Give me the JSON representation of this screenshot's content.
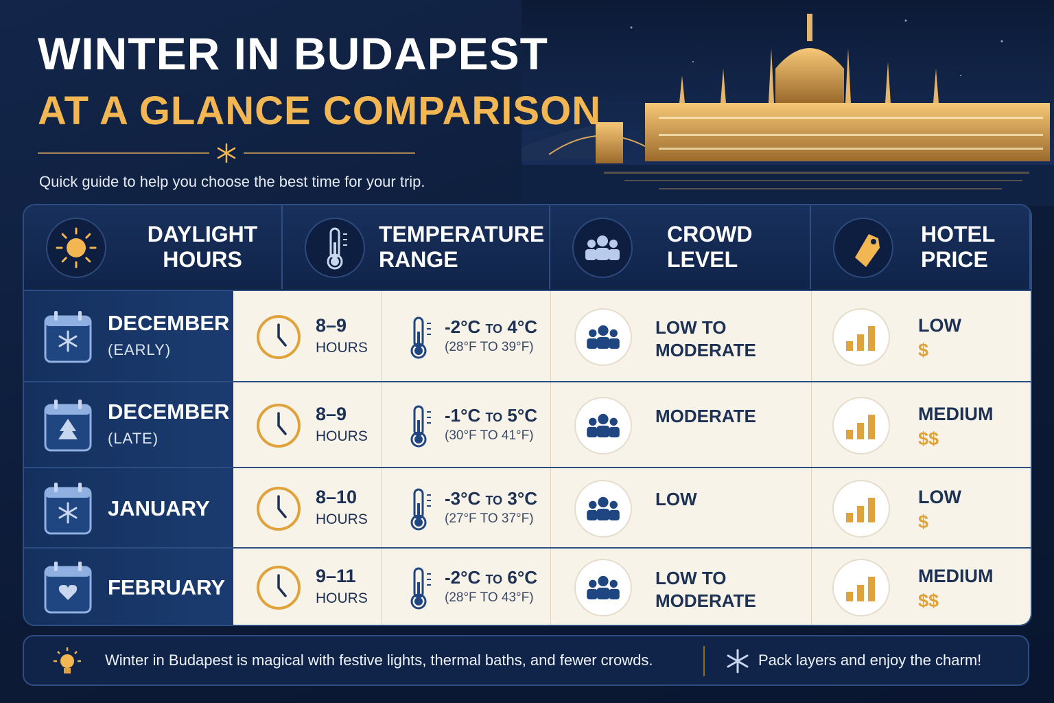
{
  "header": {
    "title_line1": "WINTER IN BUDAPEST",
    "title_line2": "AT A GLANCE COMPARISON",
    "subtitle": "Quick guide to help you choose the best time for your trip."
  },
  "table": {
    "headers": [
      "DAYLIGHT HOURS",
      "TEMPERATURE RANGE",
      "CROWD LEVEL",
      "HOTEL PRICE"
    ],
    "rows": [
      {
        "month": "DECEMBER",
        "note": "(EARLY)",
        "hours": "8–9",
        "hours_unit": "HOURS",
        "temp_c": "-2°C to 4°C",
        "temp_f": "(28°F TO 39°F)",
        "crowd": "LOW TO MODERATE",
        "price": "LOW",
        "price_symbol": "$"
      },
      {
        "month": "DECEMBER",
        "note": "(LATE)",
        "hours": "8–9",
        "hours_unit": "HOURS",
        "temp_c": "-1°C to 5°C",
        "temp_f": "(30°F TO 41°F)",
        "crowd": "MODERATE",
        "price": "MEDIUM",
        "price_symbol": "$$"
      },
      {
        "month": "JANUARY",
        "hours": "8–10",
        "hours_unit": "HOURS",
        "temp_c": "-3°C to 3°C",
        "temp_f": "(27°F TO 37°F)",
        "crowd": "LOW",
        "price": "LOW",
        "price_symbol": "$"
      },
      {
        "month": "FEBRUARY",
        "hours": "9–11",
        "hours_unit": "HOURS",
        "temp_c": "-2°C to 6°C",
        "temp_f": "(28°F TO 43°F)",
        "crowd": "LOW TO MODERATE",
        "price": "MEDIUM",
        "price_symbol": "$$"
      }
    ]
  },
  "footer": {
    "note": "Winter in Budapest is magical with festive lights, thermal baths, and fewer crowds.",
    "tip": "Pack layers and enjoy the charm!"
  }
}
